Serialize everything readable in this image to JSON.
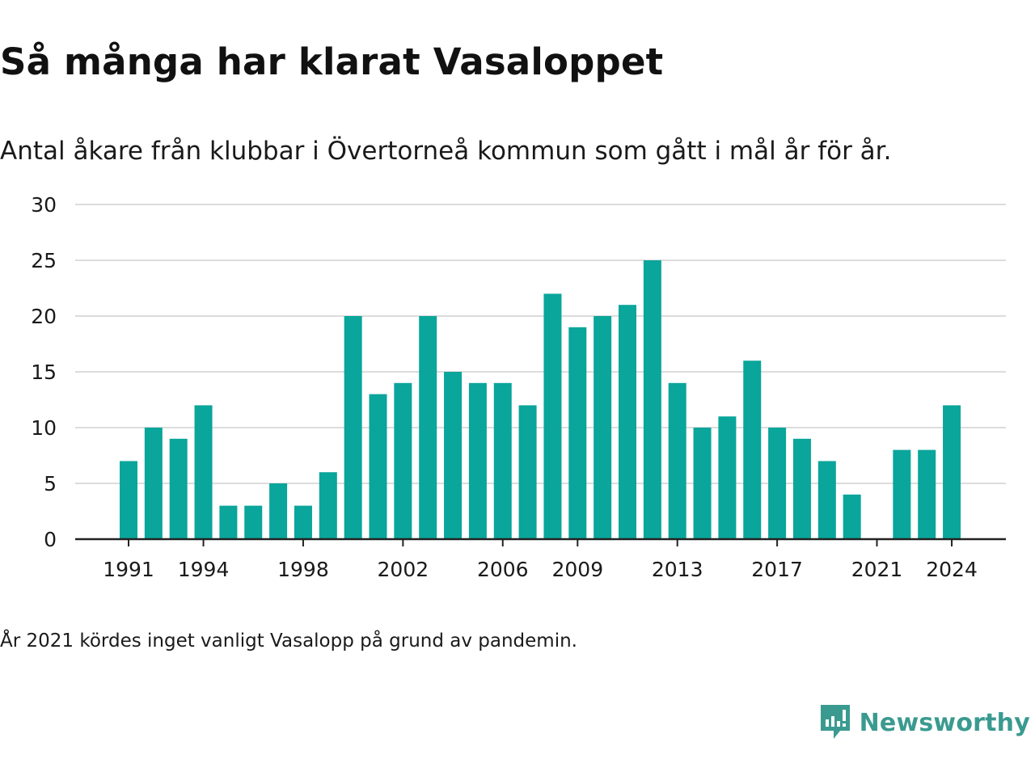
{
  "title": "Så många har klarat Vasaloppet",
  "subtitle": "Antal åkare från klubbar i Övertorneå kommun som gått i mål år för år.",
  "note": "År 2021 kördes inget vanligt Vasalopp på grund av pandemin.",
  "brand": {
    "name": "Newsworthy",
    "color": "#3a9a90",
    "icon": "newsworthy-logo-icon"
  },
  "colors": {
    "bar": "#0aa59b",
    "grid": "#dcdcdc",
    "axis": "#222222",
    "text": "#1a1a1a"
  },
  "chart_data": {
    "type": "bar",
    "categories": [
      1991,
      1992,
      1993,
      1994,
      1995,
      1996,
      1997,
      1998,
      1999,
      2000,
      2001,
      2002,
      2003,
      2004,
      2005,
      2006,
      2007,
      2008,
      2009,
      2010,
      2011,
      2012,
      2013,
      2014,
      2015,
      2016,
      2017,
      2018,
      2019,
      2020,
      2021,
      2022,
      2023,
      2024
    ],
    "values": [
      7,
      10,
      9,
      12,
      3,
      3,
      5,
      3,
      6,
      20,
      13,
      14,
      20,
      15,
      14,
      14,
      12,
      22,
      19,
      20,
      21,
      25,
      14,
      10,
      11,
      16,
      10,
      9,
      7,
      4,
      0,
      8,
      8,
      12
    ],
    "x_tick_labels": [
      "1991",
      "1994",
      "1998",
      "2002",
      "2006",
      "2009",
      "2013",
      "2017",
      "2021",
      "2024"
    ],
    "y_ticks": [
      "0",
      "5",
      "10",
      "15",
      "20",
      "25",
      "30"
    ],
    "ylim": [
      0,
      30
    ],
    "grid": true,
    "legend": "none"
  }
}
